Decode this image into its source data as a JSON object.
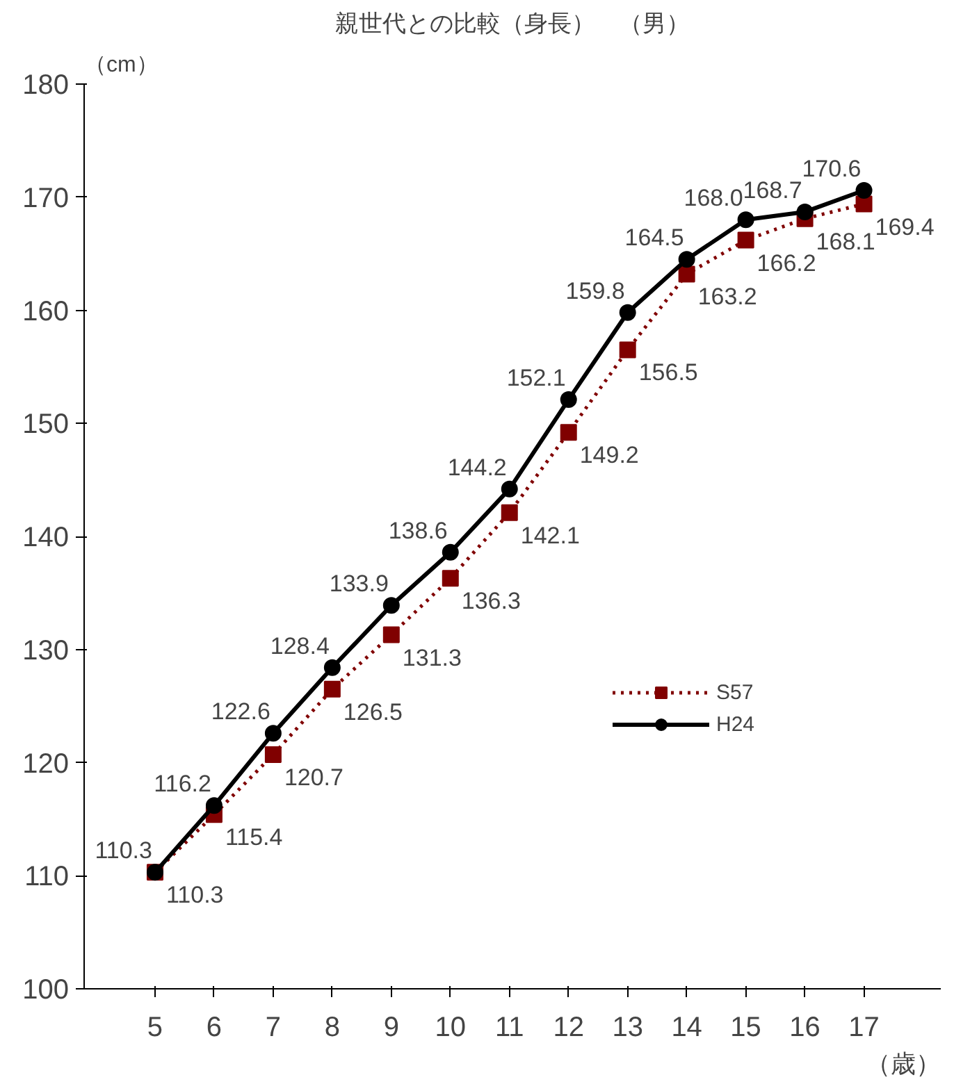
{
  "chart_data": {
    "type": "line",
    "title": "親世代との比較（身長）　（男）",
    "ylabel": "（cm）",
    "xlabel": "（歳）",
    "categories": [
      "5",
      "6",
      "7",
      "8",
      "9",
      "10",
      "11",
      "12",
      "13",
      "14",
      "15",
      "16",
      "17"
    ],
    "series": [
      {
        "name": "S57",
        "color": "#800000",
        "marker": "square",
        "line_style": "dotted",
        "values": [
          110.3,
          115.4,
          120.7,
          126.5,
          131.3,
          136.3,
          142.1,
          149.2,
          156.5,
          163.2,
          166.2,
          168.1,
          169.4
        ],
        "value_labels": [
          "110.3",
          "115.4",
          "120.7",
          "126.5",
          "131.3",
          "136.3",
          "142.1",
          "149.2",
          "156.5",
          "163.2",
          "166.2",
          "168.1",
          "169.4"
        ]
      },
      {
        "name": "H24",
        "color": "#000000",
        "marker": "circle",
        "line_style": "solid",
        "values": [
          110.3,
          116.2,
          122.6,
          128.4,
          133.9,
          138.6,
          144.2,
          152.1,
          159.8,
          164.5,
          168.0,
          168.7,
          170.6
        ],
        "value_labels": [
          "110.3",
          "116.2",
          "122.6",
          "128.4",
          "133.9",
          "138.6",
          "144.2",
          "152.1",
          "159.8",
          "164.5",
          "168.0",
          "168.7",
          "170.6"
        ]
      }
    ],
    "ylim": [
      100,
      180
    ],
    "yticks": [
      100,
      110,
      120,
      130,
      140,
      150,
      160,
      170,
      180
    ],
    "grid": false,
    "legend": "right"
  }
}
